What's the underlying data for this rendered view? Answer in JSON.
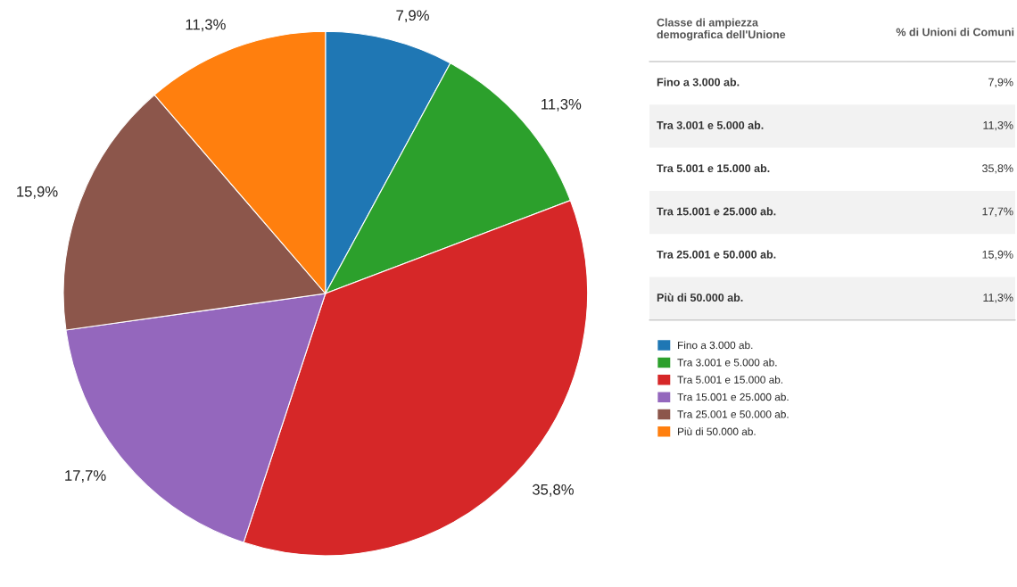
{
  "chart_data": {
    "type": "pie",
    "categories": [
      "Fino a 3.000 ab.",
      "Tra 3.001 e 5.000 ab.",
      "Tra 5.001 e 15.000 ab.",
      "Tra 15.001 e 25.000 ab.",
      "Tra 25.001 e 50.000 ab.",
      "Più di 50.000 ab."
    ],
    "values": [
      7.9,
      11.3,
      35.8,
      17.7,
      15.9,
      11.3
    ],
    "value_labels": [
      "7,9%",
      "11,3%",
      "35,8%",
      "17,7%",
      "15,9%",
      "11,3%"
    ],
    "colors": [
      "#1f77b4",
      "#2ca02c",
      "#d62728",
      "#9467bd",
      "#8c564b",
      "#ff7f0e"
    ],
    "annotations": [
      "Classe di ampiezza\ndemografica dell'Unione",
      "% di Unioni di Comuni"
    ],
    "legend": "right"
  }
}
